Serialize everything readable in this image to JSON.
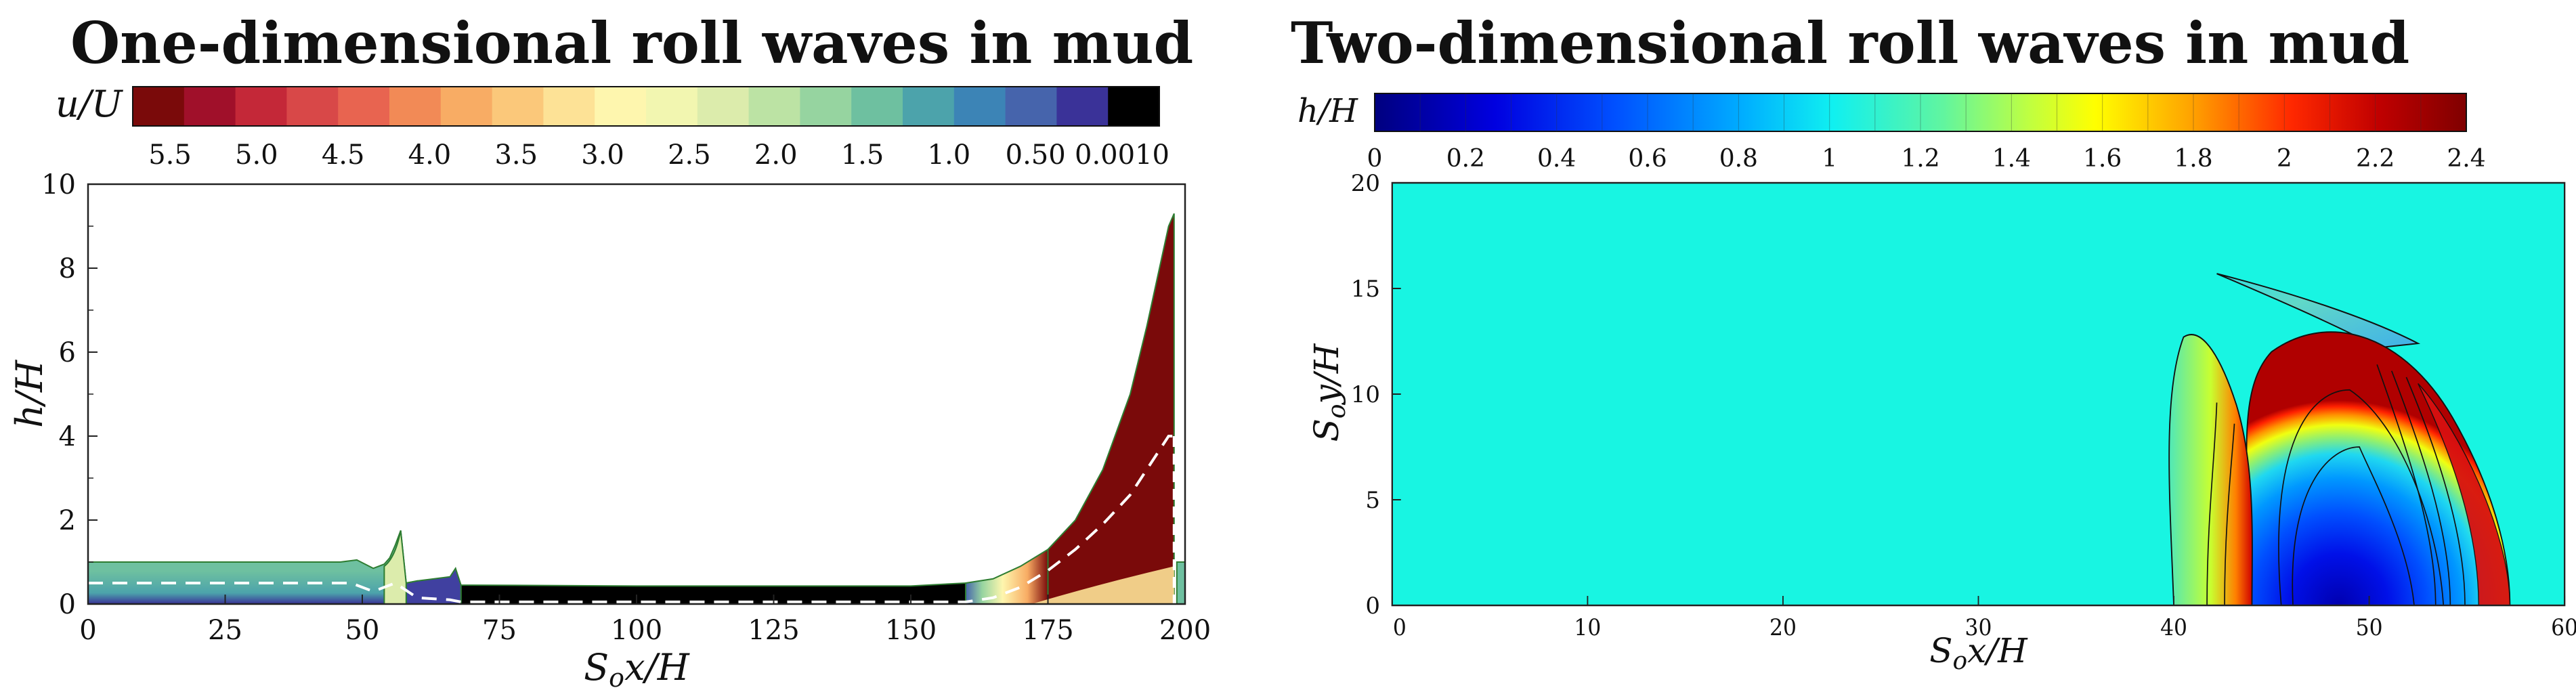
{
  "panels": [
    {
      "title": "One-dimensional roll waves in mud"
    },
    {
      "title": "Two-dimensional roll waves in mud"
    }
  ],
  "chart_data": [
    {
      "type": "area",
      "title": "One-dimensional roll waves in mud",
      "xlabel": "S_o x/H",
      "ylabel": "h/H",
      "xlim": [
        0,
        200
      ],
      "ylim": [
        0,
        10
      ],
      "xticks": [
        "0",
        "25",
        "50",
        "75",
        "100",
        "125",
        "150",
        "175",
        "200"
      ],
      "yticks": [
        "0",
        "2",
        "4",
        "6",
        "8",
        "10"
      ],
      "colorbar": {
        "label": "u/U",
        "position": "top",
        "tick_labels": [
          "5.5",
          "5.0",
          "4.5",
          "4.0",
          "3.5",
          "3.0",
          "2.5",
          "2.0",
          "1.5",
          "1.0",
          "0.50",
          "0.0010"
        ],
        "colors": [
          "#7a0a0a",
          "#a0102a",
          "#c42838",
          "#d84848",
          "#e86450",
          "#f28a56",
          "#f8ac64",
          "#fbc87a",
          "#fde296",
          "#fef6ae",
          "#f2f6b0",
          "#dcecac",
          "#bce3a4",
          "#96d4a0",
          "#6ec0a0",
          "#4ca3ab",
          "#3c84b6",
          "#4664ac",
          "#3a3298",
          "#000000"
        ]
      },
      "profile": {
        "x": [
          0,
          46,
          49,
          52,
          54,
          55,
          56,
          57,
          58,
          60,
          66,
          67,
          68,
          70,
          100,
          150,
          160,
          165,
          170,
          175,
          180,
          185,
          190,
          193,
          195,
          197,
          198,
          198.5,
          200
        ],
        "h": [
          1.0,
          1.0,
          1.05,
          0.85,
          0.95,
          1.1,
          1.4,
          1.75,
          0.5,
          0.55,
          0.65,
          0.85,
          0.45,
          0.45,
          0.43,
          0.43,
          0.5,
          0.6,
          0.9,
          1.3,
          2.0,
          3.2,
          5.0,
          6.6,
          7.8,
          9.0,
          9.3,
          1.0,
          1.0
        ]
      },
      "mean_velocity_line": {
        "style": "dashed",
        "color": "#ffffff",
        "x": [
          0,
          48,
          52,
          56,
          60,
          66,
          68,
          100,
          160,
          165,
          170,
          175,
          180,
          185,
          190,
          195,
          197,
          198
        ],
        "y": [
          0.5,
          0.5,
          0.3,
          0.5,
          0.15,
          0.1,
          0.05,
          0.05,
          0.05,
          0.15,
          0.4,
          0.8,
          1.3,
          1.9,
          2.6,
          3.6,
          4.0,
          4.0
        ]
      }
    },
    {
      "type": "heatmap",
      "title": "Two-dimensional roll waves in mud",
      "xlabel": "S_o x/H",
      "ylabel": "S_o y/H",
      "xlim": [
        0,
        60
      ],
      "ylim": [
        0,
        20
      ],
      "xticks": [
        "0",
        "10",
        "20",
        "30",
        "40",
        "50",
        "60"
      ],
      "yticks": [
        "0",
        "5",
        "10",
        "15",
        "20"
      ],
      "background_value": 1.0,
      "colorbar": {
        "label": "h/H",
        "position": "top",
        "tick_labels": [
          "0",
          "0.2",
          "0.4",
          "0.6",
          "0.8",
          "1",
          "1.2",
          "1.4",
          "1.6",
          "1.8",
          "2",
          "2.2",
          "2.4"
        ],
        "range": [
          0,
          2.4
        ],
        "colors": [
          "#00007f",
          "#0000d0",
          "#0018ff",
          "#0060ff",
          "#00a8ff",
          "#10e8f0",
          "#50f5b0",
          "#98ff60",
          "#e8ff18",
          "#ffc000",
          "#ff7000",
          "#ff2000",
          "#d00000",
          "#7f0000"
        ]
      },
      "feature": {
        "description_values": "wave front spanning x from about 40 to 57, y from 0 to about 16",
        "x_range": [
          40,
          57
        ],
        "y_max": 16
      }
    }
  ]
}
